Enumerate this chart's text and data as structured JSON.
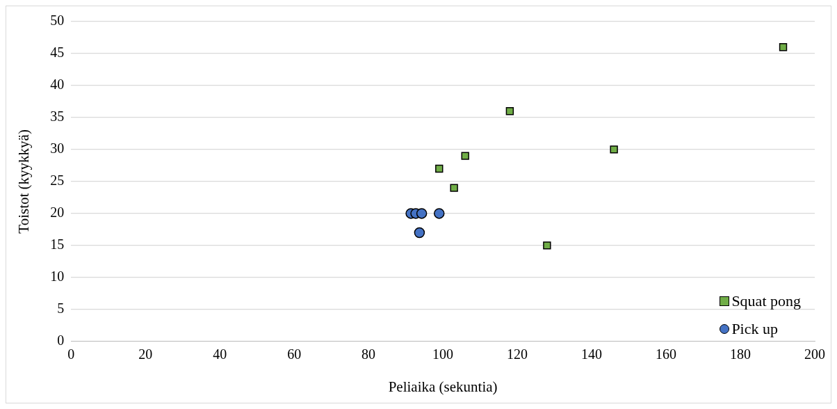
{
  "chart_data": {
    "type": "scatter",
    "xlabel": "Peliaika (sekuntia)",
    "ylabel": "Toistot (kyykkyä)",
    "xlim": [
      0,
      200
    ],
    "xticks": [
      0,
      20,
      40,
      60,
      80,
      100,
      120,
      140,
      160,
      180,
      200
    ],
    "ylim": [
      0,
      50
    ],
    "yticks": [
      0,
      5,
      10,
      15,
      20,
      25,
      30,
      35,
      40,
      45,
      50
    ],
    "grid": "y",
    "legend": "bottom right",
    "series": [
      {
        "name": "Squat pong",
        "color": "#70ad47",
        "marker": "square",
        "x": [
          191.5,
          118,
          146,
          106,
          99,
          103,
          128
        ],
        "values": [
          46,
          36,
          30,
          29,
          27,
          24,
          15
        ]
      },
      {
        "name": "Pick up",
        "color": "#4472c4",
        "marker": "circle",
        "x": [
          91.4,
          92.7,
          94.3,
          99,
          93.7
        ],
        "values": [
          20,
          20,
          20,
          20,
          17
        ]
      }
    ]
  }
}
